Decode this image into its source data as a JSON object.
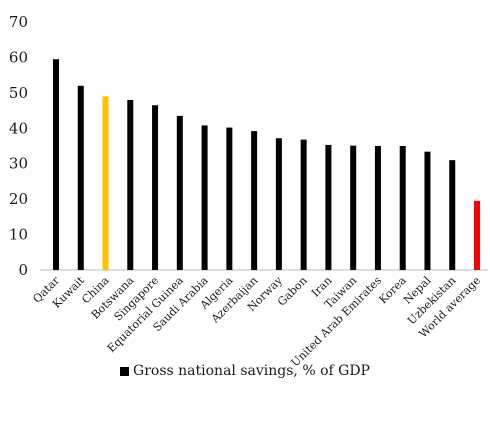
{
  "chart_data": {
    "type": "bar",
    "categories": [
      "Qatar",
      "Kuwait",
      "China",
      "Botswana",
      "Singapore",
      "Equatorial Guinea",
      "Saudi Arabia",
      "Algeria",
      "Azerbaijan",
      "Norway",
      "Gabon",
      "Iran",
      "Taiwan",
      "United Arab Emirates",
      "Korea",
      "Nepal",
      "Uzbekistan",
      "World average"
    ],
    "series": [
      {
        "name": "Gross national savings, % of GDP",
        "values": [
          59.5,
          52,
          49,
          48,
          46.5,
          43.5,
          40.8,
          40.2,
          39.2,
          37.2,
          36.8,
          35.3,
          35.1,
          35.0,
          35.0,
          33.4,
          31.0,
          19.5
        ]
      }
    ],
    "bar_colors": [
      "#000000",
      "#000000",
      "#FFC000",
      "#000000",
      "#000000",
      "#000000",
      "#000000",
      "#000000",
      "#000000",
      "#000000",
      "#000000",
      "#000000",
      "#000000",
      "#000000",
      "#000000",
      "#000000",
      "#000000",
      "#FF0000"
    ],
    "yticks": [
      "0",
      "10",
      "20",
      "30",
      "40",
      "50",
      "60",
      "70"
    ],
    "ylim": [
      0,
      70
    ],
    "legend_position": "bottom",
    "grid": false,
    "title": "",
    "xlabel": "",
    "ylabel": ""
  },
  "legend": {
    "label": "Gross national savings, % of GDP",
    "color": "#000000"
  }
}
